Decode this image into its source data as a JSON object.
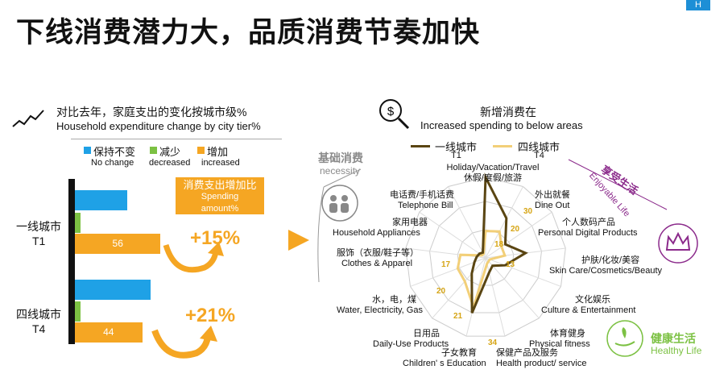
{
  "slide": {
    "title": "下线消费潜力大，品质消费节奏加快",
    "logo": "H"
  },
  "left": {
    "heading_cn": "对比去年，家庭支出的变化按城市级%",
    "heading_en": "Household expenditure change by city tier%",
    "legend": [
      {
        "cn": "保持不变",
        "en": "No change",
        "color": "#1fa1e6"
      },
      {
        "cn": "减少",
        "en": "decreased",
        "color": "#7cc143"
      },
      {
        "cn": "增加",
        "en": "increased",
        "color": "#f5a623"
      }
    ],
    "callout_cn": "消费支出增加比",
    "callout_en1": "Spending",
    "callout_en2": "amount%",
    "tiers": [
      {
        "cn": "一线城市",
        "en": "T1",
        "no_change": 0.32,
        "decreased": 0.04,
        "increased": 0.56,
        "increased_label": "56",
        "delta": "+15%"
      },
      {
        "cn": "四线城市",
        "en": "T4",
        "no_change": 0.46,
        "decreased": 0.04,
        "increased": 0.44,
        "increased_label": "44",
        "delta": "+21%"
      }
    ]
  },
  "right": {
    "heading_cn": "新增消费在",
    "heading_en": "Increased spending to below areas",
    "series": [
      {
        "cn": "一线城市",
        "en": "T1",
        "color": "#5a4512"
      },
      {
        "cn": "四线城市",
        "en": "T4",
        "color": "#f2cf78"
      }
    ],
    "necessity_cn": "基础消费",
    "necessity_en": "necessity",
    "enjoy_cn": "享受生活",
    "enjoy_en": "Enjoyable Life",
    "health_cn": "健康生活",
    "health_en": "Healthy Life",
    "axes": [
      {
        "cn": "休假/度假/旅游",
        "en": "Holiday/Vacation/Travel",
        "t1": 54,
        "t4": 18
      },
      {
        "cn": "外出就餐",
        "en": "Dine Out",
        "t1": 30,
        "t4": 20
      },
      {
        "cn": "个人数码产品",
        "en": "Personal Digital Products",
        "t1": 16,
        "t4": 13
      },
      {
        "cn": "护肤/化妆/美容",
        "en": "Skin Care/Cosmetics/Beauty",
        "t1": 27,
        "t4": 13
      },
      {
        "cn": "文化娱乐",
        "en": "Culture & Entertainment",
        "t1": 14,
        "t4": 3
      },
      {
        "cn": "体育健身",
        "en": "Physical fitness",
        "t1": 7,
        "t4": 3
      },
      {
        "cn": "保健产品及服务",
        "en": "Health product/ service",
        "t1": 10,
        "t4": 4
      },
      {
        "cn": "子女教育",
        "en": "Children' s Education",
        "t1": 38,
        "t4": 34
      },
      {
        "cn": "日用品",
        "en": "Daily-Use Products",
        "t1": 14,
        "t4": 21
      },
      {
        "cn": "水，电，煤",
        "en": "Water, Electricity, Gas",
        "t1": 8,
        "t4": 20
      },
      {
        "cn": "服饰（衣服/鞋子等）",
        "en": "Clothes & Apparel",
        "t1": 6,
        "t4": 17
      },
      {
        "cn": "家用电器",
        "en": "Household Appliances",
        "t1": 5,
        "t4": 3
      },
      {
        "cn": "电话费/手机话费",
        "en": "Telephone Bill",
        "t1": 4,
        "t4": 3
      }
    ],
    "value_labels": [
      {
        "text": "30"
      },
      {
        "text": "20"
      },
      {
        "text": "18"
      },
      {
        "text": "13"
      },
      {
        "text": "17"
      },
      {
        "text": "20"
      },
      {
        "text": "21"
      },
      {
        "text": "34"
      }
    ]
  }
}
